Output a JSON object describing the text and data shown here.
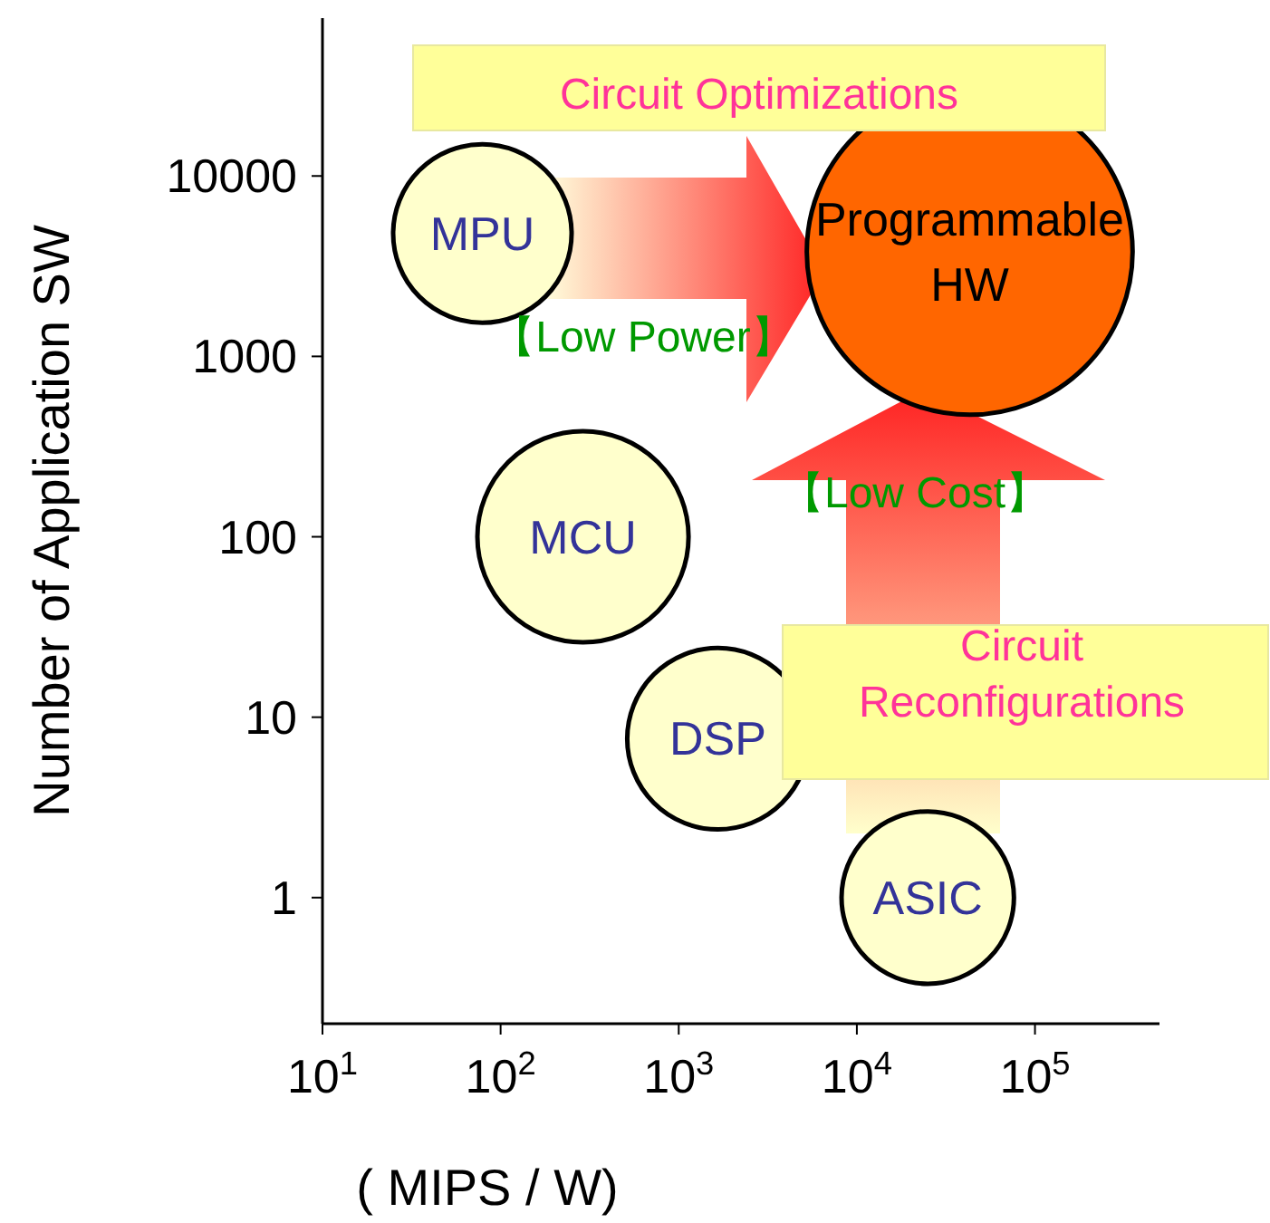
{
  "chart_data": {
    "type": "bubble",
    "xlabel": "( MIPS / W)",
    "ylabel": "Number of Application SW",
    "log": "xy",
    "xlim": [
      10,
      500000
    ],
    "xticks": [
      {
        "value": 10,
        "label": "10$^{1}$"
      },
      {
        "value": 100,
        "label": "10$^{2}$"
      },
      {
        "value": 1000,
        "label": "10$^{3}$"
      },
      {
        "value": 10000,
        "label": "10$^{4}$"
      },
      {
        "value": 100000,
        "label": "10$^{5}$"
      }
    ],
    "ylim": [
      0.2,
      75000
    ],
    "yticks": [
      1,
      10,
      100,
      1000,
      10000
    ],
    "series": [
      {
        "name": "MPU",
        "color": "#ffffcc",
        "x": [
          79
        ],
        "values": [
          4800
        ],
        "sizes": [
          0.3
        ]
      },
      {
        "name": "MCU",
        "color": "#ffffcc",
        "x": [
          290
        ],
        "values": [
          100
        ],
        "sizes": [
          0.42
        ]
      },
      {
        "name": "DSP",
        "color": "#ffffcc",
        "x": [
          1660
        ],
        "values": [
          7.6
        ],
        "sizes": [
          0.31
        ]
      },
      {
        "name": "ASIC",
        "color": "#ffffcc",
        "x": [
          25000
        ],
        "values": [
          1
        ],
        "sizes": [
          0.28
        ]
      },
      {
        "name": "Programmable HW",
        "color": "#ff6600",
        "x": [
          43000
        ],
        "values": [
          3800
        ],
        "sizes": [
          1
        ]
      }
    ],
    "annotations": [
      "Circuit Optimizations",
      "Circuit Reconfigurations",
      "【Low Power】",
      "【Low Cost】"
    ]
  }
}
